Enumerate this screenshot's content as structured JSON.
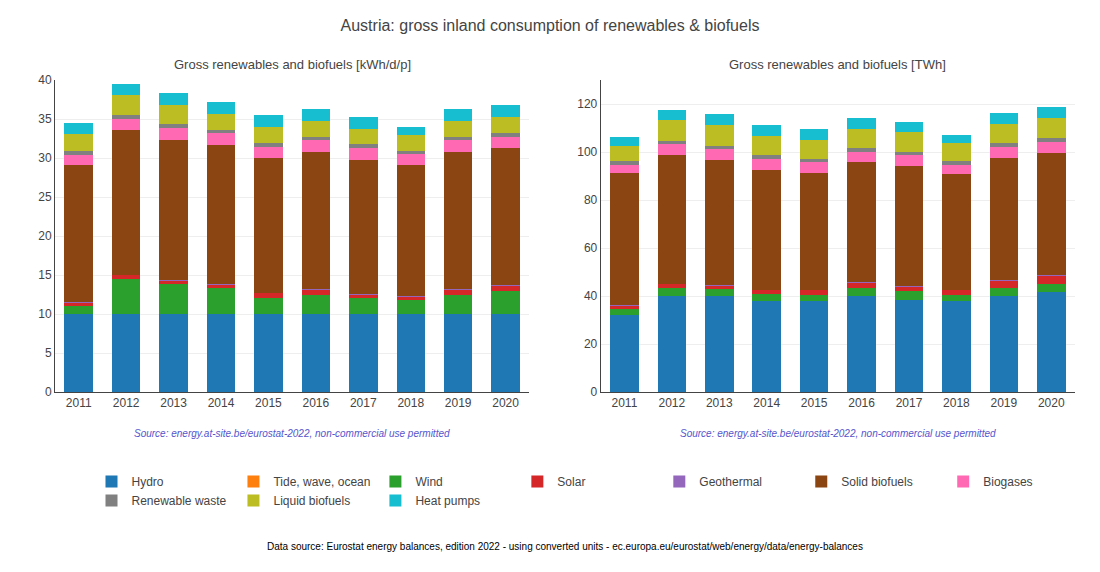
{
  "title": "Austria: gross inland consumption of renewables & biofuels",
  "annotations": [
    "Data source: Eurostat energy balances, edition 2022 - using converted units - ec.europa.eu/eurostat/web/energy/data/energy-balances"
  ],
  "chart_data": [
    {
      "type": "bar",
      "stacked": true,
      "grid": true,
      "title": "Gross renewables and biofuels [kWh/d/p]",
      "annotations": [
        "Source: energy.at-site.be/eurostat-2022, non-commercial use permitted"
      ],
      "categories": [
        "2011",
        "2012",
        "2013",
        "2014",
        "2015",
        "2016",
        "2017",
        "2018",
        "2019",
        "2020"
      ],
      "ylim": [
        0,
        40
      ],
      "yticks": [
        0,
        5,
        10,
        15,
        20,
        25,
        30,
        35,
        40
      ],
      "series": [
        {
          "name": "Hydro",
          "color": "#1f77b4",
          "values": [
            10.0,
            10.0,
            10.0,
            10.0,
            10.0,
            10.0,
            10.0,
            10.0,
            10.0,
            10.0
          ]
        },
        {
          "name": "Tide, wave, ocean",
          "color": "#ff7f0e",
          "values": [
            0.0,
            0.0,
            0.0,
            0.0,
            0.0,
            0.0,
            0.0,
            0.0,
            0.0,
            0.0
          ]
        },
        {
          "name": "Wind",
          "color": "#2ca02c",
          "values": [
            1.0,
            4.5,
            3.8,
            3.3,
            2.0,
            2.5,
            2.0,
            1.8,
            2.5,
            3.0
          ]
        },
        {
          "name": "Solar",
          "color": "#d62728",
          "values": [
            0.5,
            0.5,
            0.5,
            0.5,
            0.7,
            0.7,
            0.5,
            0.5,
            0.7,
            0.7
          ]
        },
        {
          "name": "Geothermal",
          "color": "#9467bd",
          "values": [
            0.05,
            0.05,
            0.05,
            0.05,
            0.05,
            0.05,
            0.05,
            0.05,
            0.05,
            0.05
          ]
        },
        {
          "name": "Solid biofuels",
          "color": "#8B4513",
          "values": [
            17.5,
            18.5,
            18.0,
            17.8,
            17.2,
            17.5,
            17.2,
            16.8,
            17.5,
            17.5
          ]
        },
        {
          "name": "Biogases",
          "color": "#ff69b4",
          "values": [
            1.3,
            1.5,
            1.5,
            1.5,
            1.5,
            1.5,
            1.5,
            1.3,
            1.5,
            1.5
          ]
        },
        {
          "name": "Renewable waste",
          "color": "#808080",
          "values": [
            0.5,
            0.5,
            0.5,
            0.5,
            0.5,
            0.5,
            0.5,
            0.5,
            0.5,
            0.5
          ]
        },
        {
          "name": "Liquid biofuels",
          "color": "#bcbd22",
          "values": [
            2.2,
            2.5,
            2.5,
            2.0,
            2.0,
            2.0,
            2.0,
            2.0,
            2.0,
            2.0
          ]
        },
        {
          "name": "Heat pumps",
          "color": "#17becf",
          "values": [
            1.5,
            1.5,
            1.5,
            1.5,
            1.5,
            1.5,
            1.5,
            1.0,
            1.5,
            1.5
          ]
        }
      ]
    },
    {
      "type": "bar",
      "stacked": true,
      "grid": true,
      "title": "Gross renewables and biofuels [TWh]",
      "annotations": [
        "Source: energy.at-site.be/eurostat-2022, non-commercial use permitted"
      ],
      "categories": [
        "2011",
        "2012",
        "2013",
        "2014",
        "2015",
        "2016",
        "2017",
        "2018",
        "2019",
        "2020"
      ],
      "ylim": [
        0,
        130
      ],
      "yticks": [
        0,
        20,
        40,
        60,
        80,
        100,
        120
      ],
      "series": [
        {
          "name": "Hydro",
          "color": "#1f77b4",
          "values": [
            32.0,
            40.0,
            40.0,
            38.0,
            38.0,
            40.0,
            38.5,
            38.0,
            40.0,
            41.5
          ]
        },
        {
          "name": "Tide, wave, ocean",
          "color": "#ff7f0e",
          "values": [
            0.0,
            0.0,
            0.0,
            0.0,
            0.0,
            0.0,
            0.0,
            0.0,
            0.0,
            0.0
          ]
        },
        {
          "name": "Wind",
          "color": "#2ca02c",
          "values": [
            2.5,
            3.5,
            3.0,
            3.0,
            2.5,
            3.5,
            3.5,
            2.5,
            3.5,
            3.5
          ]
        },
        {
          "name": "Solar",
          "color": "#d62728",
          "values": [
            1.5,
            1.5,
            1.5,
            1.5,
            2.0,
            2.0,
            2.0,
            2.0,
            3.0,
            3.5
          ]
        },
        {
          "name": "Geothermal",
          "color": "#9467bd",
          "values": [
            0.2,
            0.2,
            0.2,
            0.2,
            0.2,
            0.2,
            0.2,
            0.2,
            0.2,
            0.2
          ]
        },
        {
          "name": "Solid biofuels",
          "color": "#8B4513",
          "values": [
            55.0,
            53.5,
            52.0,
            50.0,
            48.5,
            50.0,
            50.0,
            48.0,
            51.0,
            51.0
          ]
        },
        {
          "name": "Biogases",
          "color": "#ff69b4",
          "values": [
            3.5,
            4.5,
            4.5,
            4.5,
            4.5,
            4.5,
            4.5,
            4.0,
            4.5,
            4.5
          ]
        },
        {
          "name": "Renewable waste",
          "color": "#808080",
          "values": [
            1.5,
            1.5,
            1.5,
            1.5,
            1.5,
            1.5,
            1.5,
            1.5,
            1.5,
            1.5
          ]
        },
        {
          "name": "Liquid biofuels",
          "color": "#bcbd22",
          "values": [
            6.5,
            8.5,
            8.5,
            8.0,
            8.0,
            8.0,
            8.0,
            7.5,
            8.0,
            8.5
          ]
        },
        {
          "name": "Heat pumps",
          "color": "#17becf",
          "values": [
            3.5,
            4.5,
            4.5,
            4.5,
            4.5,
            4.5,
            4.5,
            3.5,
            4.5,
            4.5
          ]
        }
      ]
    }
  ]
}
